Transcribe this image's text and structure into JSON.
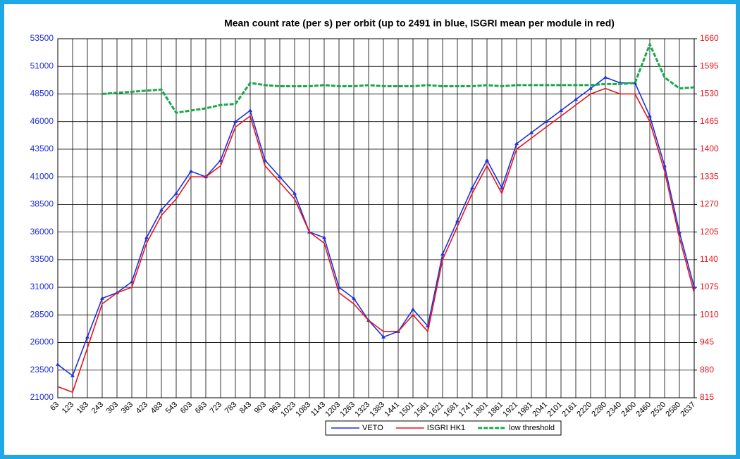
{
  "chart_data": {
    "type": "line",
    "title": "Mean count rate (per s) per orbit (up to 2491 in blue, ISGRI mean per module in red)",
    "categories": [
      "63",
      "123",
      "183",
      "243",
      "303",
      "363",
      "423",
      "483",
      "543",
      "603",
      "663",
      "723",
      "783",
      "843",
      "903",
      "963",
      "1023",
      "1083",
      "1143",
      "1203",
      "1263",
      "1323",
      "1383",
      "1441",
      "1501",
      "1561",
      "1621",
      "1681",
      "1741",
      "1801",
      "1861",
      "1921",
      "1981",
      "2041",
      "2101",
      "2161",
      "2220",
      "2280",
      "2340",
      "2400",
      "2460",
      "2520",
      "2580",
      "2637"
    ],
    "ylim": [
      21000,
      53500
    ],
    "yticks": [
      21000,
      23500,
      26000,
      28500,
      31000,
      33500,
      36000,
      38500,
      41000,
      43500,
      46000,
      48500,
      51000,
      53500
    ],
    "y2lim": [
      815,
      1660
    ],
    "y2ticks": [
      815,
      880,
      945,
      1010,
      1075,
      1140,
      1205,
      1270,
      1335,
      1400,
      1465,
      1530,
      1595,
      1660
    ],
    "grid": true,
    "legend": "bottom",
    "series": [
      {
        "name": "VETO",
        "color": "#1f2fe0",
        "values": [
          24000,
          23000,
          26500,
          30000,
          30500,
          31500,
          35500,
          38000,
          39500,
          41500,
          41000,
          42500,
          46000,
          47000,
          42500,
          41000,
          39500,
          36000,
          35500,
          31000,
          30000,
          28000,
          26500,
          27000,
          29000,
          27500,
          34000,
          37000,
          40000,
          42500,
          40000,
          44000,
          45000,
          46000,
          47000,
          48000,
          49000,
          50000,
          49500,
          49500,
          46500,
          42000,
          36000,
          31000
        ]
      },
      {
        "name": "ISGRI HK1",
        "color": "#e8141c",
        "axis": "y2",
        "values": [
          841,
          828,
          932,
          1036,
          1062,
          1075,
          1179,
          1244,
          1283,
          1335,
          1335,
          1361,
          1452,
          1478,
          1361,
          1322,
          1283,
          1205,
          1179,
          1062,
          1036,
          997,
          971,
          971,
          1010,
          971,
          1140,
          1218,
          1296,
          1361,
          1296,
          1400,
          1426,
          1452,
          1478,
          1504,
          1530,
          1543,
          1530,
          1530,
          1465,
          1348,
          1192,
          1062
        ]
      },
      {
        "name": "low threshold",
        "color": "#1aa84a",
        "values": [
          null,
          null,
          null,
          48500,
          48600,
          48700,
          48800,
          48900,
          46800,
          47000,
          47200,
          47500,
          47600,
          49500,
          49300,
          49200,
          49200,
          49200,
          49300,
          49200,
          49200,
          49300,
          49200,
          49200,
          49200,
          49300,
          49200,
          49200,
          49200,
          49300,
          49200,
          49300,
          49300,
          49300,
          49300,
          49300,
          49300,
          49400,
          49400,
          49500,
          53000,
          50000,
          49000,
          49100
        ]
      }
    ]
  }
}
